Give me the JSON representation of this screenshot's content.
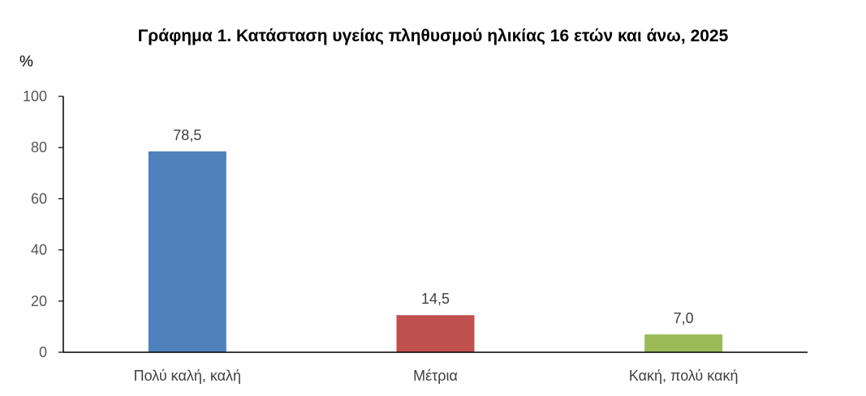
{
  "chart_data": {
    "type": "bar",
    "title": "Γράφημα 1. Κατάσταση υγείας πληθυσμού ηλικίας 16 ετών και άνω, 2025",
    "ylabel": "%",
    "xlabel": "",
    "ylim": [
      0,
      100
    ],
    "yticks": [
      0,
      20,
      40,
      60,
      80,
      100
    ],
    "categories": [
      "Πολύ καλή, καλή",
      "Μέτρια",
      "Κακή, πολύ κακή"
    ],
    "values": [
      78.5,
      14.5,
      7.0
    ],
    "data_labels": [
      "78,5",
      "14,5",
      "7,0"
    ],
    "colors": [
      "#4F81BD",
      "#C0504D",
      "#9BBB59"
    ],
    "legend": "none",
    "grid": false
  }
}
